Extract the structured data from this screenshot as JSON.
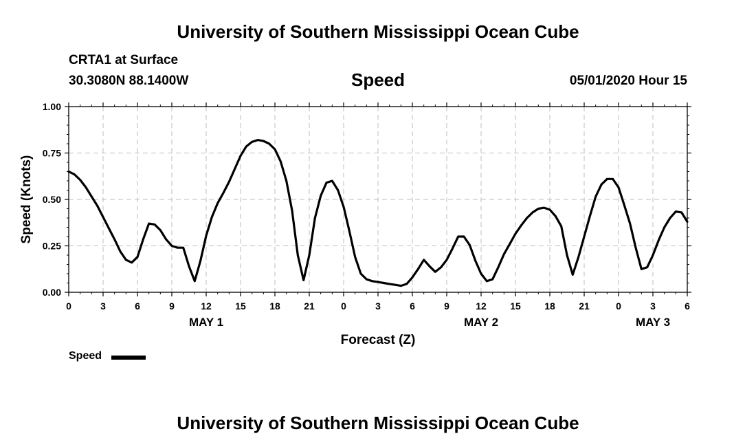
{
  "header": {
    "top_title": "University of Southern Mississippi Ocean Cube",
    "station": "CRTA1 at Surface",
    "coordinates": "30.3080N 88.1400W",
    "chart_title": "Speed",
    "datetime": "05/01/2020 Hour 15"
  },
  "footer": {
    "bottom_title": "University of Southern Mississippi Ocean Cube"
  },
  "legend": {
    "label": "Speed",
    "color": "#000000"
  },
  "chart_data": {
    "type": "line",
    "title": "Speed",
    "xlabel": "Forecast (Z)",
    "ylabel": "Speed (Knots)",
    "x_units": "hours from 00Z May 1",
    "xlim": [
      0,
      54
    ],
    "ylim": [
      0,
      1.0
    ],
    "grid": true,
    "legend_position": "bottom-left",
    "y_ticks": [
      0.0,
      0.25,
      0.5,
      0.75,
      1.0
    ],
    "y_tick_labels": [
      "0.00",
      "0.25",
      "0.50",
      "0.75",
      "1.00"
    ],
    "x_ticks": [
      0,
      3,
      6,
      9,
      12,
      15,
      18,
      21,
      24,
      27,
      30,
      33,
      36,
      39,
      42,
      45,
      48,
      51,
      54
    ],
    "x_tick_labels": [
      "0",
      "3",
      "6",
      "9",
      "12",
      "15",
      "18",
      "21",
      "0",
      "3",
      "6",
      "9",
      "12",
      "15",
      "18",
      "21",
      "0",
      "3",
      "6"
    ],
    "day_labels": [
      {
        "label": "MAY 1",
        "x": 12
      },
      {
        "label": "MAY 2",
        "x": 36
      },
      {
        "label": "MAY 3",
        "x": 51
      }
    ],
    "series": [
      {
        "name": "Speed",
        "x": [
          0,
          0.5,
          1,
          1.5,
          2,
          2.5,
          3,
          3.5,
          4,
          4.5,
          5,
          5.5,
          6,
          6.5,
          7,
          7.5,
          8,
          8.5,
          9,
          9.5,
          10,
          10.5,
          11,
          11.5,
          12,
          12.5,
          13,
          13.5,
          14,
          14.5,
          15,
          15.5,
          16,
          16.5,
          17,
          17.5,
          18,
          18.5,
          19,
          19.5,
          20,
          20.5,
          21,
          21.5,
          22,
          22.5,
          23,
          23.5,
          24,
          24.5,
          25,
          25.5,
          26,
          26.5,
          27,
          27.5,
          28,
          28.5,
          29,
          29.5,
          30,
          30.5,
          31,
          31.5,
          32,
          32.5,
          33,
          33.5,
          34,
          34.5,
          35,
          35.5,
          36,
          36.5,
          37,
          37.5,
          38,
          38.5,
          39,
          39.5,
          40,
          40.5,
          41,
          41.5,
          42,
          42.5,
          43,
          43.5,
          44,
          44.5,
          45,
          45.5,
          46,
          46.5,
          47,
          47.5,
          48,
          48.5,
          49,
          49.5,
          50,
          50.5,
          51,
          51.5,
          52,
          52.5,
          53,
          53.5,
          54
        ],
        "values": [
          0.65,
          0.635,
          0.605,
          0.565,
          0.515,
          0.465,
          0.405,
          0.345,
          0.285,
          0.22,
          0.175,
          0.16,
          0.19,
          0.285,
          0.37,
          0.365,
          0.335,
          0.285,
          0.25,
          0.24,
          0.24,
          0.14,
          0.06,
          0.17,
          0.305,
          0.405,
          0.48,
          0.535,
          0.595,
          0.665,
          0.735,
          0.785,
          0.81,
          0.82,
          0.815,
          0.8,
          0.77,
          0.705,
          0.6,
          0.44,
          0.2,
          0.065,
          0.2,
          0.4,
          0.52,
          0.59,
          0.6,
          0.55,
          0.46,
          0.33,
          0.19,
          0.1,
          0.07,
          0.06,
          0.055,
          0.05,
          0.045,
          0.04,
          0.035,
          0.045,
          0.08,
          0.125,
          0.175,
          0.14,
          0.11,
          0.135,
          0.175,
          0.235,
          0.3,
          0.3,
          0.255,
          0.17,
          0.1,
          0.06,
          0.07,
          0.135,
          0.205,
          0.26,
          0.315,
          0.36,
          0.4,
          0.43,
          0.45,
          0.455,
          0.445,
          0.41,
          0.355,
          0.2,
          0.095,
          0.19,
          0.3,
          0.41,
          0.515,
          0.58,
          0.61,
          0.61,
          0.565,
          0.47,
          0.37,
          0.24,
          0.125,
          0.135,
          0.2,
          0.28,
          0.35,
          0.4,
          0.435,
          0.43,
          0.38
        ]
      }
    ]
  }
}
